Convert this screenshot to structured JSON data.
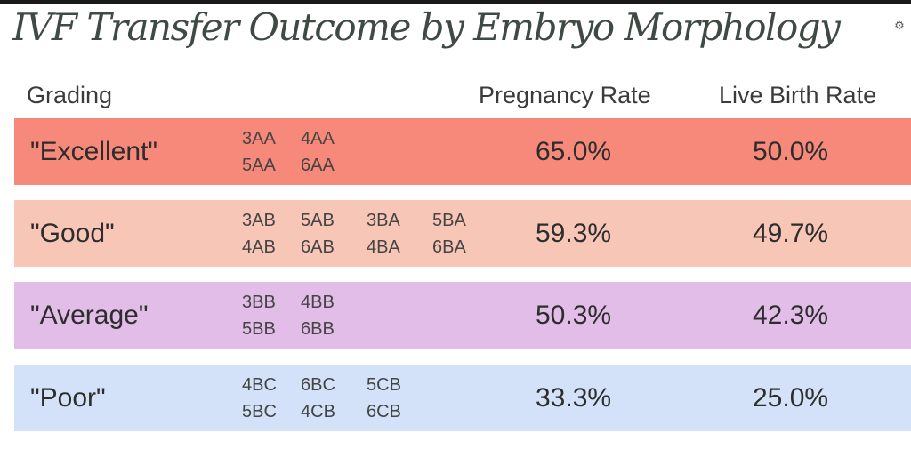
{
  "chart_data": {
    "type": "table",
    "title": "IVF Transfer Outcome by Embryo Morphology",
    "columns": [
      "Grading",
      "Pregnancy Rate",
      "Live Birth Rate"
    ],
    "rows": [
      {
        "grade": "\"Excellent\"",
        "codes": [
          [
            "3AA",
            "4AA"
          ],
          [
            "5AA",
            "6AA"
          ]
        ],
        "pregnancy_rate": "65.0%",
        "live_birth_rate": "50.0%",
        "color": "#f7897a"
      },
      {
        "grade": "\"Good\"",
        "codes": [
          [
            "3AB",
            "5AB",
            "3BA",
            "5BA"
          ],
          [
            "4AB",
            "6AB",
            "4BA",
            "6BA"
          ]
        ],
        "pregnancy_rate": "59.3%",
        "live_birth_rate": "49.7%",
        "color": "#f8c6b6"
      },
      {
        "grade": "\"Average\"",
        "codes": [
          [
            "3BB",
            "4BB"
          ],
          [
            "5BB",
            "6BB"
          ]
        ],
        "pregnancy_rate": "50.3%",
        "live_birth_rate": "42.3%",
        "color": "#e1bde7"
      },
      {
        "grade": "\"Poor\"",
        "codes": [
          [
            "4BC",
            "6BC",
            "5CB"
          ],
          [
            "5BC",
            "4CB",
            "6CB"
          ]
        ],
        "pregnancy_rate": "33.3%",
        "live_birth_rate": "25.0%",
        "color": "#d3e2f8"
      }
    ]
  },
  "icons": {
    "corner": "translate-icon"
  }
}
